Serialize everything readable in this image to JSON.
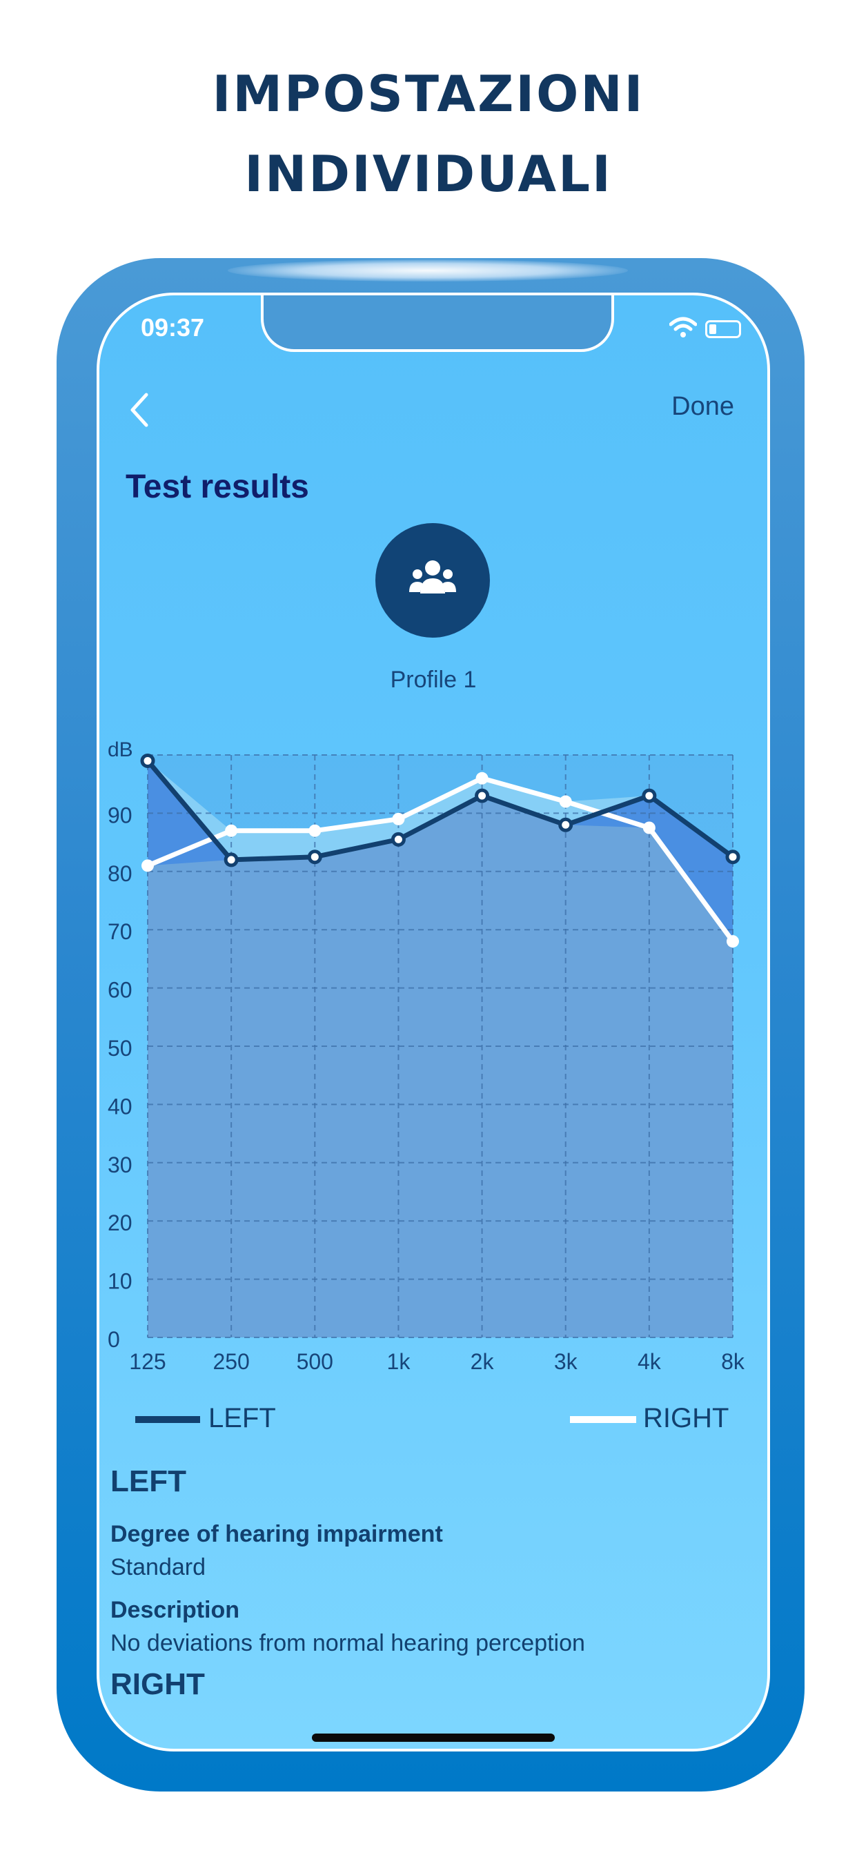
{
  "headline": {
    "line1": "IMPOSTAZIONI",
    "line2": "INDIVIDUALI"
  },
  "status_bar": {
    "time": "09:37"
  },
  "nav": {
    "done_label": "Done"
  },
  "screen_title": "Test results",
  "profile": {
    "name": "Profile 1",
    "icon": "people-group-icon"
  },
  "legend": {
    "left_label": "LEFT",
    "right_label": "RIGHT"
  },
  "results": {
    "left_heading": "LEFT",
    "degree_label": "Degree of hearing impairment",
    "degree_value": "Standard",
    "description_label": "Description",
    "description_value": "No deviations from normal hearing perception",
    "right_heading": "RIGHT"
  },
  "colors": {
    "left_line": "#12406f",
    "right_line": "#ffffff",
    "plot_fill": "#6aa4dc",
    "left_over_fill": "#4a8fe2",
    "right_over_fill": "#86cff6",
    "headline": "#12375f"
  },
  "chart_data": {
    "type": "line",
    "ylabel": "dB",
    "x": [
      "125",
      "250",
      "500",
      "1k",
      "2k",
      "3k",
      "4k",
      "8k"
    ],
    "ylim": [
      0,
      100
    ],
    "yticks": [
      "0",
      "10",
      "20",
      "30",
      "40",
      "50",
      "60",
      "70",
      "80",
      "90"
    ],
    "grid": true,
    "series": [
      {
        "name": "LEFT",
        "values": [
          99,
          82,
          82.5,
          85.5,
          93,
          88,
          93,
          82.5
        ]
      },
      {
        "name": "RIGHT",
        "values": [
          81,
          87,
          87,
          89,
          96,
          92,
          87.5,
          68
        ]
      }
    ]
  }
}
